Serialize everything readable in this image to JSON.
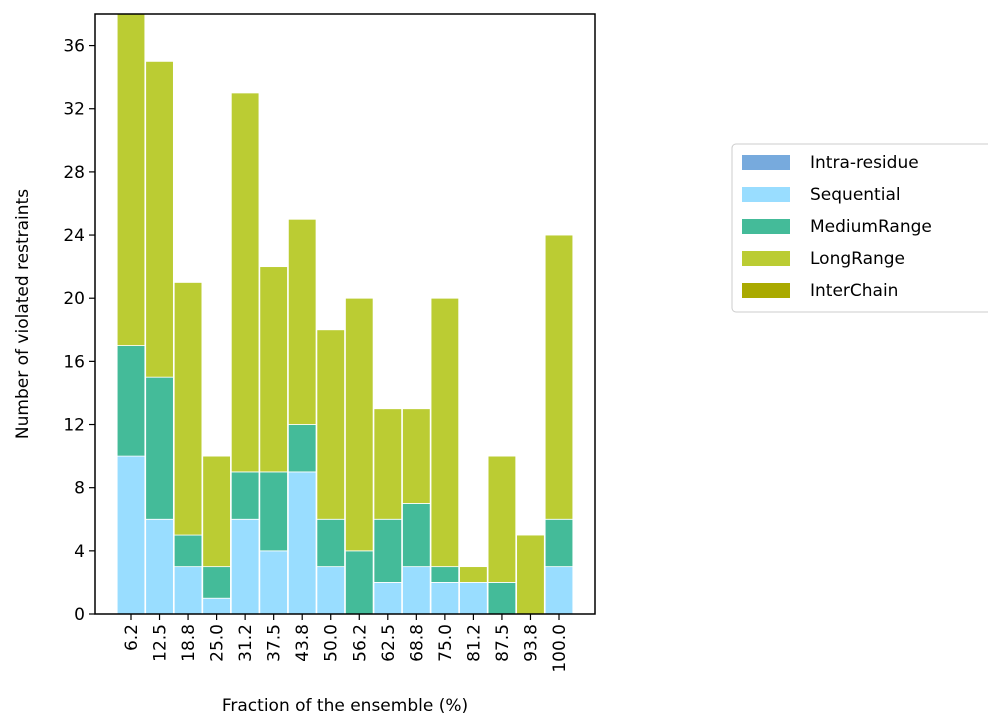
{
  "chart_data": {
    "type": "stacked_bar",
    "x_label": "Fraction of the ensemble (%)",
    "y_label": "Number of violated restraints",
    "categories": [
      "6.2",
      "12.5",
      "18.8",
      "25.0",
      "31.2",
      "37.5",
      "43.8",
      "50.0",
      "56.2",
      "62.5",
      "68.8",
      "75.0",
      "81.2",
      "87.5",
      "93.8",
      "100.0"
    ],
    "series": [
      {
        "name": "Intra-residue",
        "color": "#77aadd",
        "values": [
          0,
          0,
          0,
          0,
          0,
          0,
          0,
          0,
          0,
          0,
          0,
          0,
          0,
          0,
          0,
          0
        ]
      },
      {
        "name": "Sequential",
        "color": "#99ddff",
        "values": [
          10,
          6,
          3,
          1,
          6,
          4,
          9,
          3,
          0,
          2,
          3,
          2,
          2,
          0,
          0,
          3
        ]
      },
      {
        "name": "MediumRange",
        "color": "#44bb99",
        "values": [
          7,
          9,
          2,
          2,
          3,
          5,
          3,
          3,
          4,
          4,
          4,
          1,
          0,
          2,
          0,
          3
        ]
      },
      {
        "name": "LongRange",
        "color": "#bbcc33",
        "values": [
          21,
          20,
          16,
          7,
          24,
          13,
          13,
          12,
          16,
          7,
          6,
          17,
          1,
          8,
          5,
          18
        ]
      },
      {
        "name": "InterChain",
        "color": "#aaaa00",
        "values": [
          0,
          0,
          0,
          0,
          0,
          0,
          0,
          0,
          0,
          0,
          0,
          0,
          0,
          0,
          0,
          0
        ]
      }
    ],
    "ylim": [
      0,
      38
    ],
    "yticks": [
      0,
      4,
      8,
      12,
      16,
      20,
      24,
      28,
      32,
      36
    ],
    "legend": "right"
  }
}
